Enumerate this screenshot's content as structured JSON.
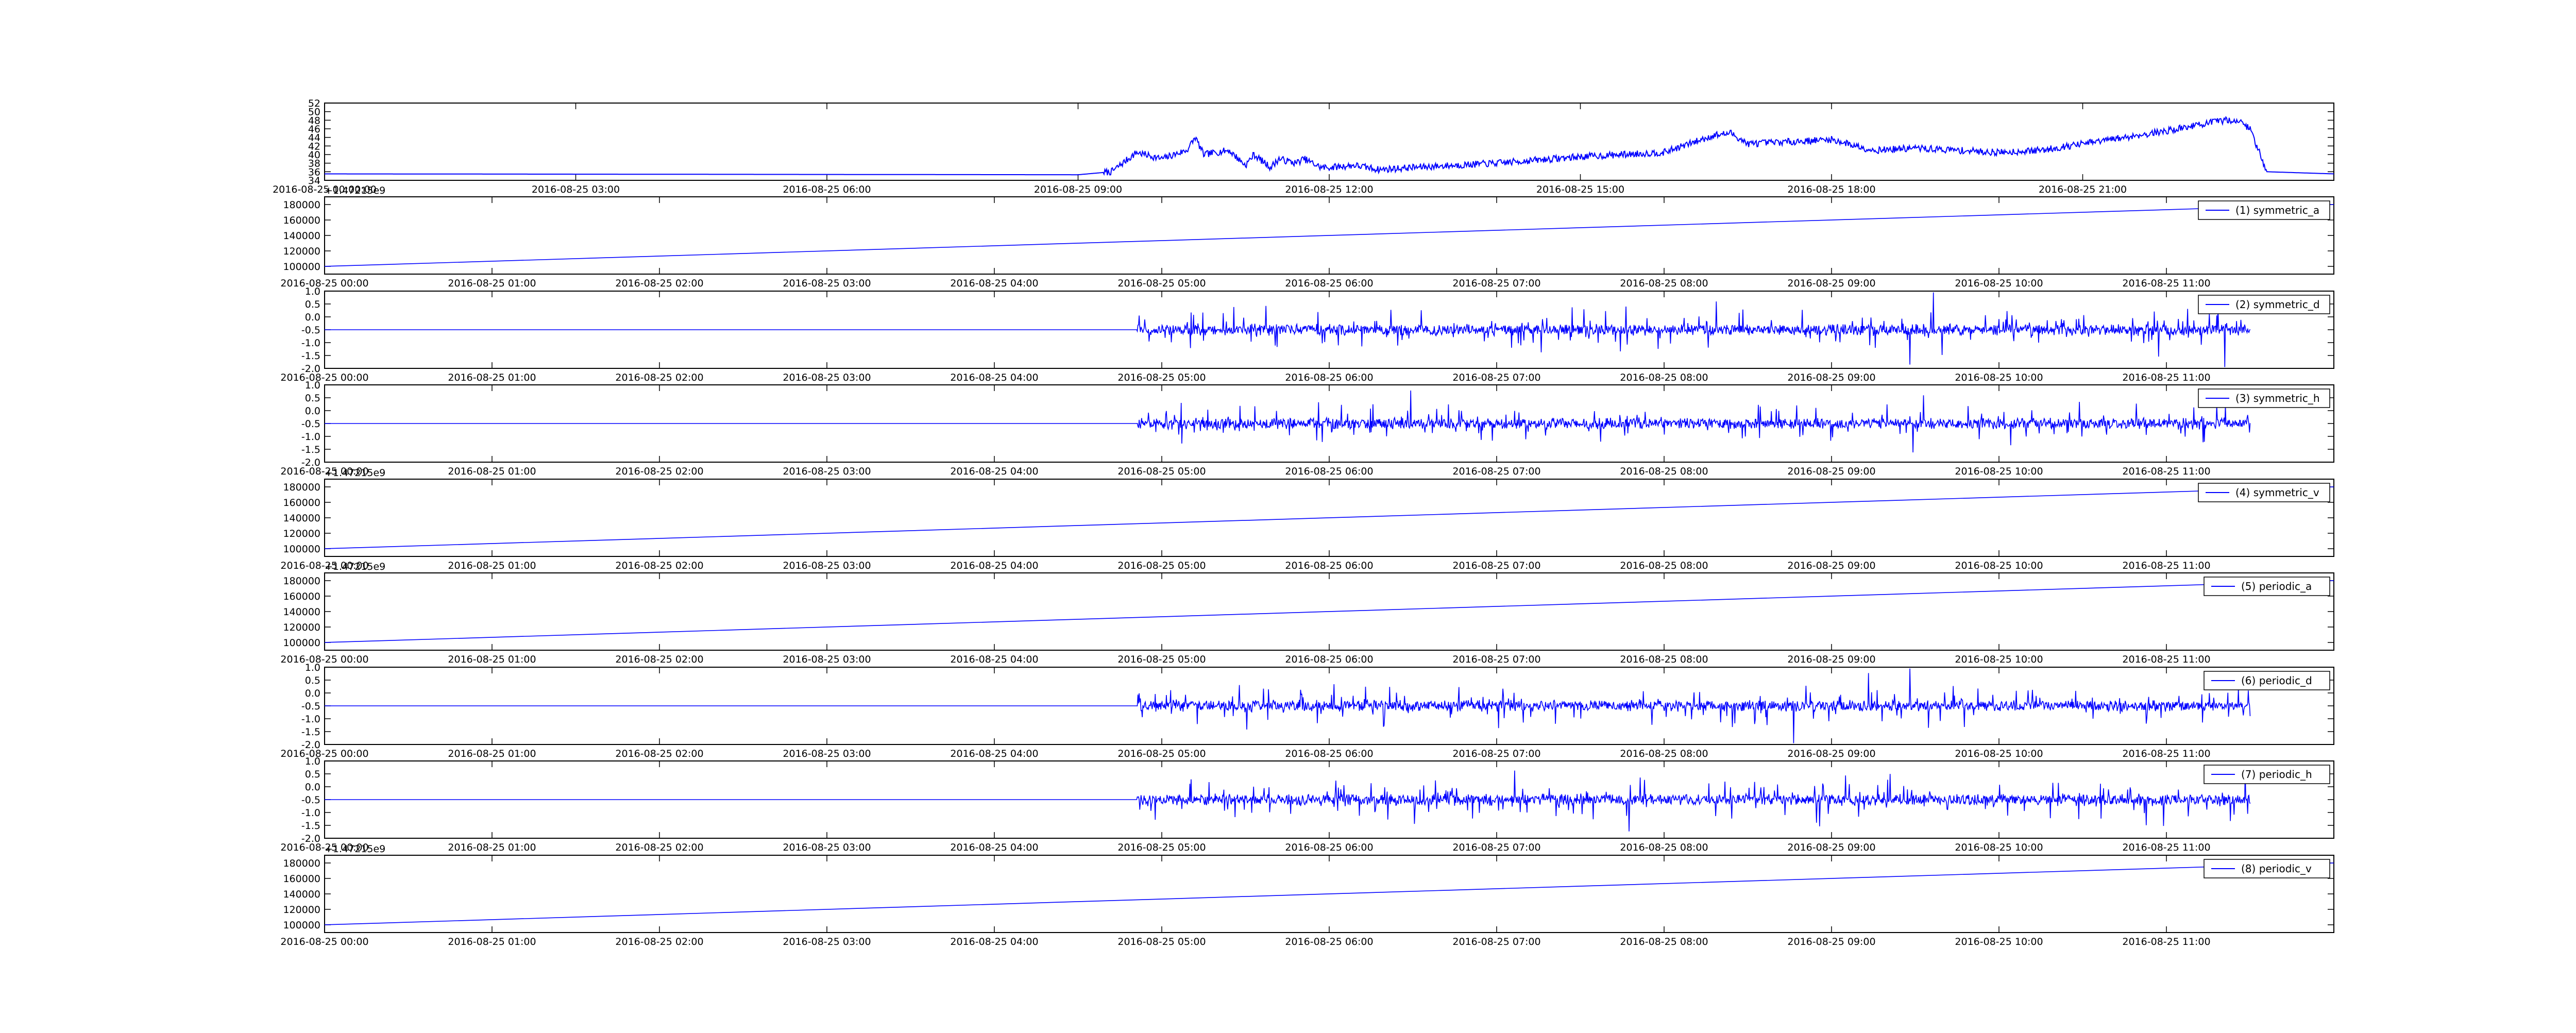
{
  "figure": {
    "background": "#ffffff",
    "line_color": "#0000ff"
  },
  "chart_data": [
    {
      "type": "line",
      "title": "",
      "xlabel": "",
      "ylabel": "",
      "legend": null,
      "ylim": [
        34,
        52
      ],
      "y_ticks": [
        "34",
        "36",
        "38",
        "40",
        "42",
        "44",
        "46",
        "48",
        "50",
        "52"
      ],
      "x_tick_labels": [
        "2016-08-25 00:00:00",
        "2016-08-25 03:00",
        "2016-08-25 06:00",
        "2016-08-25 09:00",
        "2016-08-25 12:00",
        "2016-08-25 15:00",
        "2016-08-25 18:00",
        "2016-08-25 21:00"
      ],
      "x_range_hours": [
        0,
        24
      ],
      "x_tick_hours": [
        0,
        3,
        6,
        9,
        12,
        15,
        18,
        21
      ],
      "profile_hours": [
        0,
        9.0,
        9.4,
        9.7,
        10.0,
        10.3,
        10.4,
        10.5,
        10.8,
        11.0,
        11.1,
        11.3,
        11.4,
        11.6,
        11.7,
        11.9,
        12.0,
        12.3,
        12.6,
        13.0,
        13.5,
        14.0,
        15.0,
        16.0,
        16.6,
        16.8,
        17.0,
        17.5,
        18.0,
        18.5,
        19.0,
        20.0,
        20.5,
        21.0,
        21.5,
        22.0,
        22.4,
        22.7,
        22.85,
        23.0,
        23.2,
        24.0
      ],
      "profile_values": [
        35.5,
        35.3,
        36,
        40.5,
        39,
        41,
        44,
        40,
        41,
        37.5,
        40,
        37,
        39,
        38,
        39,
        37,
        37,
        37.5,
        36.5,
        37,
        37.5,
        38,
        39.5,
        40.5,
        44.5,
        45,
        42.5,
        43,
        43.5,
        41,
        41.5,
        40.5,
        41,
        42.5,
        44,
        45.5,
        47,
        48,
        48,
        46,
        36,
        35.5
      ]
    },
    {
      "type": "line",
      "title": "",
      "xlabel": "",
      "ylabel": "",
      "legend": "(1) symmetric_a",
      "legend_position": "top-right",
      "offset_text": "+1.47215e9",
      "ylim": [
        90000,
        190000
      ],
      "y_ticks": [
        "100000",
        "120000",
        "140000",
        "160000",
        "180000"
      ],
      "x_tick_labels": [
        "2016-08-25 00:00",
        "2016-08-25 01:00",
        "2016-08-25 02:00",
        "2016-08-25 03:00",
        "2016-08-25 04:00",
        "2016-08-25 05:00",
        "2016-08-25 06:00",
        "2016-08-25 07:00",
        "2016-08-25 08:00",
        "2016-08-25 09:00",
        "2016-08-25 10:00",
        "2016-08-25 11:00"
      ],
      "x_range_hours": [
        0,
        12
      ],
      "series_start": [
        0,
        100000
      ],
      "series_end": [
        12,
        180000
      ]
    },
    {
      "type": "line",
      "title": "",
      "xlabel": "",
      "ylabel": "",
      "legend": "(2) symmetric_d",
      "legend_position": "top-right",
      "ylim": [
        -2.0,
        1.0
      ],
      "y_ticks": [
        "-2.0",
        "-1.5",
        "-1.0",
        "-0.5",
        "0.0",
        "0.5",
        "1.0"
      ],
      "x_tick_labels": [
        "2016-08-25 00:00",
        "2016-08-25 01:00",
        "2016-08-25 02:00",
        "2016-08-25 03:00",
        "2016-08-25 04:00",
        "2016-08-25 05:00",
        "2016-08-25 06:00",
        "2016-08-25 07:00",
        "2016-08-25 08:00",
        "2016-08-25 09:00",
        "2016-08-25 10:00",
        "2016-08-25 11:00"
      ],
      "x_range_hours": [
        0,
        12
      ],
      "baseline": -0.5,
      "noise_start_hour": 4.85,
      "series_end_hour": 11.5
    },
    {
      "type": "line",
      "title": "",
      "xlabel": "",
      "ylabel": "",
      "legend": "(3) symmetric_h",
      "legend_position": "top-right",
      "ylim": [
        -2.0,
        1.0
      ],
      "y_ticks": [
        "-2.0",
        "-1.5",
        "-1.0",
        "-0.5",
        "0.0",
        "0.5",
        "1.0"
      ],
      "x_tick_labels": [
        "2016-08-25 00:00",
        "2016-08-25 01:00",
        "2016-08-25 02:00",
        "2016-08-25 03:00",
        "2016-08-25 04:00",
        "2016-08-25 05:00",
        "2016-08-25 06:00",
        "2016-08-25 07:00",
        "2016-08-25 08:00",
        "2016-08-25 09:00",
        "2016-08-25 10:00",
        "2016-08-25 11:00"
      ],
      "x_range_hours": [
        0,
        12
      ],
      "baseline": -0.5,
      "noise_start_hour": 4.85,
      "series_end_hour": 11.5
    },
    {
      "type": "line",
      "title": "",
      "xlabel": "",
      "ylabel": "",
      "legend": "(4) symmetric_v",
      "legend_position": "top-right",
      "offset_text": "+1.47215e9",
      "ylim": [
        90000,
        190000
      ],
      "y_ticks": [
        "100000",
        "120000",
        "140000",
        "160000",
        "180000"
      ],
      "x_tick_labels": [
        "2016-08-25 00:00",
        "2016-08-25 01:00",
        "2016-08-25 02:00",
        "2016-08-25 03:00",
        "2016-08-25 04:00",
        "2016-08-25 05:00",
        "2016-08-25 06:00",
        "2016-08-25 07:00",
        "2016-08-25 08:00",
        "2016-08-25 09:00",
        "2016-08-25 10:00",
        "2016-08-25 11:00"
      ],
      "x_range_hours": [
        0,
        12
      ],
      "series_start": [
        0,
        100000
      ],
      "series_end": [
        12,
        180000
      ]
    },
    {
      "type": "line",
      "title": "",
      "xlabel": "",
      "ylabel": "",
      "legend": "(5) periodic_a",
      "legend_position": "top-right",
      "offset_text": "+1.47215e9",
      "ylim": [
        90000,
        190000
      ],
      "y_ticks": [
        "100000",
        "120000",
        "140000",
        "160000",
        "180000"
      ],
      "x_tick_labels": [
        "2016-08-25 00:00",
        "2016-08-25 01:00",
        "2016-08-25 02:00",
        "2016-08-25 03:00",
        "2016-08-25 04:00",
        "2016-08-25 05:00",
        "2016-08-25 06:00",
        "2016-08-25 07:00",
        "2016-08-25 08:00",
        "2016-08-25 09:00",
        "2016-08-25 10:00",
        "2016-08-25 11:00"
      ],
      "x_range_hours": [
        0,
        12
      ],
      "series_start": [
        0,
        100000
      ],
      "series_end": [
        12,
        180000
      ]
    },
    {
      "type": "line",
      "title": "",
      "xlabel": "",
      "ylabel": "",
      "legend": "(6) periodic_d",
      "legend_position": "top-right",
      "ylim": [
        -2.0,
        1.0
      ],
      "y_ticks": [
        "-2.0",
        "-1.5",
        "-1.0",
        "-0.5",
        "0.0",
        "0.5",
        "1.0"
      ],
      "x_tick_labels": [
        "2016-08-25 00:00",
        "2016-08-25 01:00",
        "2016-08-25 02:00",
        "2016-08-25 03:00",
        "2016-08-25 04:00",
        "2016-08-25 05:00",
        "2016-08-25 06:00",
        "2016-08-25 07:00",
        "2016-08-25 08:00",
        "2016-08-25 09:00",
        "2016-08-25 10:00",
        "2016-08-25 11:00"
      ],
      "x_range_hours": [
        0,
        12
      ],
      "baseline": -0.5,
      "noise_start_hour": 4.85,
      "series_end_hour": 11.5
    },
    {
      "type": "line",
      "title": "",
      "xlabel": "",
      "ylabel": "",
      "legend": "(7) periodic_h",
      "legend_position": "top-right",
      "ylim": [
        -2.0,
        1.0
      ],
      "y_ticks": [
        "-2.0",
        "-1.5",
        "-1.0",
        "-0.5",
        "0.0",
        "0.5",
        "1.0"
      ],
      "x_tick_labels": [
        "2016-08-25 00:00",
        "2016-08-25 01:00",
        "2016-08-25 02:00",
        "2016-08-25 03:00",
        "2016-08-25 04:00",
        "2016-08-25 05:00",
        "2016-08-25 06:00",
        "2016-08-25 07:00",
        "2016-08-25 08:00",
        "2016-08-25 09:00",
        "2016-08-25 10:00",
        "2016-08-25 11:00"
      ],
      "x_range_hours": [
        0,
        12
      ],
      "baseline": -0.5,
      "noise_start_hour": 4.85,
      "series_end_hour": 11.5
    },
    {
      "type": "line",
      "title": "",
      "xlabel": "",
      "ylabel": "",
      "legend": "(8) periodic_v",
      "legend_position": "top-right",
      "offset_text": "+1.47215e9",
      "ylim": [
        90000,
        190000
      ],
      "y_ticks": [
        "100000",
        "120000",
        "140000",
        "160000",
        "180000"
      ],
      "x_tick_labels": [
        "2016-08-25 00:00",
        "2016-08-25 01:00",
        "2016-08-25 02:00",
        "2016-08-25 03:00",
        "2016-08-25 04:00",
        "2016-08-25 05:00",
        "2016-08-25 06:00",
        "2016-08-25 07:00",
        "2016-08-25 08:00",
        "2016-08-25 09:00",
        "2016-08-25 10:00",
        "2016-08-25 11:00"
      ],
      "x_range_hours": [
        0,
        12
      ],
      "series_start": [
        0,
        100000
      ],
      "series_end": [
        12,
        180000
      ]
    }
  ]
}
